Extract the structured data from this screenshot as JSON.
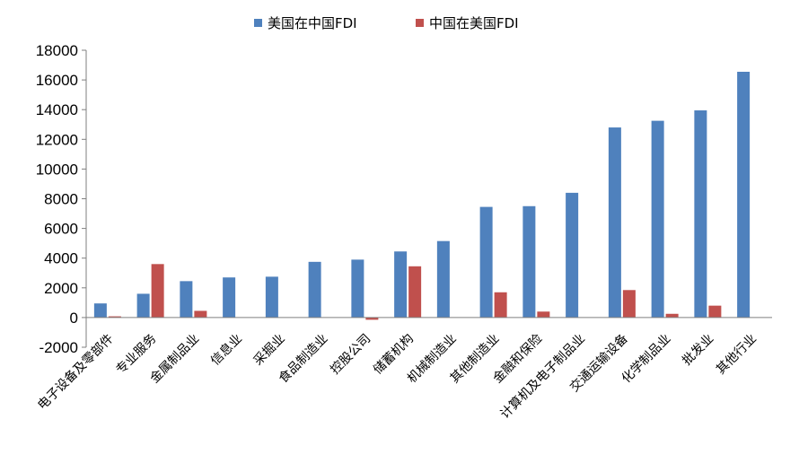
{
  "chart_data": {
    "type": "bar",
    "categories": [
      "电子设备及零部件",
      "专业服务",
      "金属制品业",
      "信息业",
      "采掘业",
      "食品制造业",
      "控股公司",
      "储蓄机构",
      "机械制造业",
      "其他制造业",
      "金融和保险",
      "计算机及电子制品业",
      "交通运输设备",
      "化学制品业",
      "批发业",
      "其他行业"
    ],
    "series": [
      {
        "name": "美国在中国FDI",
        "color": "#4f81bd",
        "values": [
          950,
          1600,
          2450,
          2700,
          2750,
          3750,
          3900,
          4450,
          5150,
          7450,
          7500,
          8400,
          12800,
          13250,
          13950,
          16550
        ]
      },
      {
        "name": "中国在美国FDI",
        "color": "#c0504d",
        "values": [
          80,
          3600,
          450,
          0,
          0,
          0,
          -150,
          3450,
          0,
          1700,
          400,
          0,
          1850,
          250,
          800,
          0
        ]
      }
    ],
    "ylim": [
      -2000,
      18000
    ],
    "yticks": [
      -2000,
      0,
      2000,
      4000,
      6000,
      8000,
      10000,
      12000,
      14000,
      16000,
      18000
    ],
    "legend_position": "top-center",
    "grid": false
  }
}
